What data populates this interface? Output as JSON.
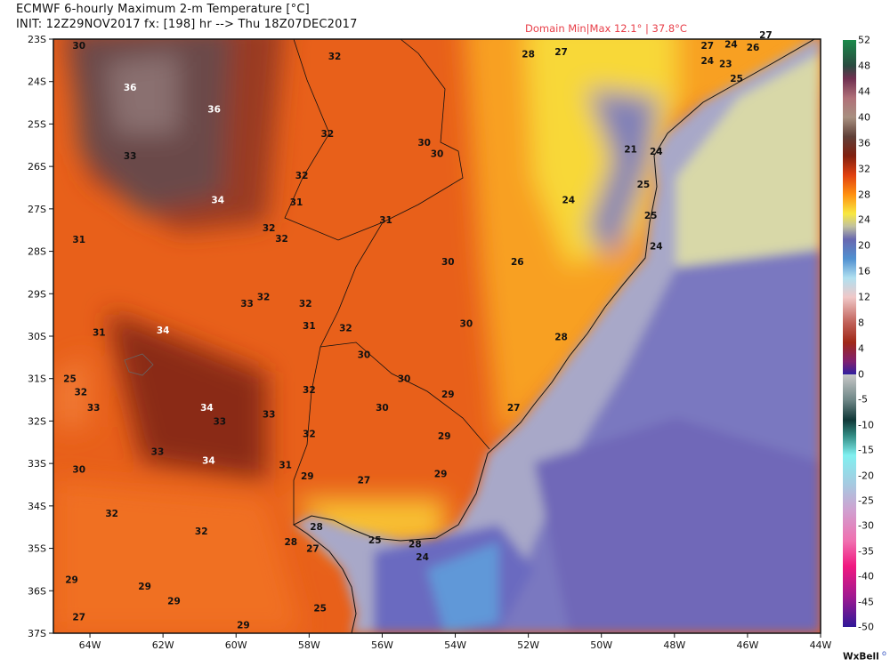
{
  "header": {
    "title": "ECMWF 6-hourly Maximum 2-m Temperature [°C]",
    "init_line": "INIT: 12Z29NOV2017 fx: [198] hr --> Thu 18Z07DEC2017",
    "domain_minmax": "Domain Min|Max 12.1° | 37.8°C"
  },
  "map": {
    "lon_range": [
      -65,
      -44
    ],
    "lat_range": [
      -37,
      -23
    ],
    "lat_ticks": [
      "23S",
      "24S",
      "25S",
      "26S",
      "27S",
      "28S",
      "29S",
      "30S",
      "31S",
      "32S",
      "33S",
      "34S",
      "35S",
      "36S",
      "37S"
    ],
    "lon_ticks": [
      "64W",
      "62W",
      "60W",
      "58W",
      "56W",
      "54W",
      "52W",
      "50W",
      "48W",
      "46W",
      "44W"
    ],
    "temperature_labels": [
      {
        "t": "30",
        "lon": -64.3,
        "lat": -23.1
      },
      {
        "t": "36",
        "lon": -62.9,
        "lat": -24.65
      },
      {
        "t": "36",
        "lon": -60.6,
        "lat": -25.15
      },
      {
        "t": "33",
        "lon": -62.9,
        "lat": -26.2
      },
      {
        "t": "34",
        "lon": -60.5,
        "lat": -27.2
      },
      {
        "t": "31",
        "lon": -64.3,
        "lat": -28.1
      },
      {
        "t": "32",
        "lon": -59.25,
        "lat": -29.4
      },
      {
        "t": "33",
        "lon": -59.7,
        "lat": -29.55
      },
      {
        "t": "32",
        "lon": -58.1,
        "lat": -29.55
      },
      {
        "t": "31",
        "lon": -63.75,
        "lat": -30.2
      },
      {
        "t": "34",
        "lon": -62.0,
        "lat": -30.15
      },
      {
        "t": "31",
        "lon": -58.0,
        "lat": -30.05
      },
      {
        "t": "32",
        "lon": -57.0,
        "lat": -30.1
      },
      {
        "t": "30",
        "lon": -56.5,
        "lat": -30.7
      },
      {
        "t": "30",
        "lon": -55.4,
        "lat": -31.25
      },
      {
        "t": "25",
        "lon": -64.55,
        "lat": -31.25
      },
      {
        "t": "32",
        "lon": -64.25,
        "lat": -31.55
      },
      {
        "t": "33",
        "lon": -63.9,
        "lat": -31.9
      },
      {
        "t": "34",
        "lon": -60.8,
        "lat": -31.9
      },
      {
        "t": "33",
        "lon": -60.45,
        "lat": -31.97
      },
      {
        "t": "33",
        "lon": -59.1,
        "lat": -32.05
      },
      {
        "t": "32",
        "lon": -58.0,
        "lat": -31.5
      },
      {
        "t": "32",
        "lon": -58.0,
        "lat": -32.5
      },
      {
        "t": "30",
        "lon": -56.0,
        "lat": -31.9
      },
      {
        "t": "29",
        "lon": -54.2,
        "lat": -31.6
      },
      {
        "t": "29",
        "lon": -54.3,
        "lat": -32.55
      },
      {
        "t": "27",
        "lon": -52.4,
        "lat": -31.9
      },
      {
        "t": "33",
        "lon": -62.15,
        "lat": -32.9
      },
      {
        "t": "34",
        "lon": -60.75,
        "lat": -33.1
      },
      {
        "t": "31",
        "lon": -58.65,
        "lat": -33.2
      },
      {
        "t": "29",
        "lon": -58.05,
        "lat": -33.45
      },
      {
        "t": "27",
        "lon": -56.5,
        "lat": -33.55
      },
      {
        "t": "29",
        "lon": -54.4,
        "lat": -33.4
      },
      {
        "t": "30",
        "lon": -64.3,
        "lat": -33.3
      },
      {
        "t": "32",
        "lon": -63.4,
        "lat": -34.3
      },
      {
        "t": "32",
        "lon": -60.95,
        "lat": -34.7
      },
      {
        "t": "28",
        "lon": -57.8,
        "lat": -34.6
      },
      {
        "t": "28",
        "lon": -58.5,
        "lat": -34.95
      },
      {
        "t": "27",
        "lon": -57.9,
        "lat": -35.1
      },
      {
        "t": "25",
        "lon": -56.2,
        "lat": -34.9
      },
      {
        "t": "28",
        "lon": -55.1,
        "lat": -35.0
      },
      {
        "t": "24",
        "lon": -54.9,
        "lat": -35.05
      },
      {
        "t": "29",
        "lon": -64.5,
        "lat": -35.8
      },
      {
        "t": "29",
        "lon": -62.5,
        "lat": -35.95
      },
      {
        "t": "29",
        "lon": -61.7,
        "lat": -36.28
      },
      {
        "t": "25",
        "lon": -57.7,
        "lat": -36.45
      },
      {
        "t": "27",
        "lon": -64.3,
        "lat": -36.65
      },
      {
        "t": "29",
        "lon": -59.8,
        "lat": -36.83
      },
      {
        "t": "32",
        "lon": -57.3,
        "lat": -23.95
      },
      {
        "t": "32",
        "lon": -57.5,
        "lat": -25.7
      },
      {
        "t": "30",
        "lon": -54.85,
        "lat": -25.9
      },
      {
        "t": "30",
        "lon": -54.5,
        "lat": -26.15
      },
      {
        "t": "32",
        "lon": -58.2,
        "lat": -26.65
      },
      {
        "t": "31",
        "lon": -58.35,
        "lat": -27.25
      },
      {
        "t": "32",
        "lon": -59.1,
        "lat": -27.83
      },
      {
        "t": "32",
        "lon": -58.75,
        "lat": -27.83
      },
      {
        "t": "31",
        "lon": -55.9,
        "lat": -27.65
      },
      {
        "t": "30",
        "lon": -54.2,
        "lat": -28.6
      },
      {
        "t": "26",
        "lon": -52.3,
        "lat": -28.6
      },
      {
        "t": "30",
        "lon": -53.7,
        "lat": -30.0
      },
      {
        "t": "28",
        "lon": -52.0,
        "lat": -23.9
      },
      {
        "t": "27",
        "lon": -51.1,
        "lat": -23.85
      },
      {
        "t": "27",
        "lon": -47.1,
        "lat": -23.55
      },
      {
        "t": "26",
        "lon": -45.85,
        "lat": -23.75
      },
      {
        "t": "27",
        "lon": -45.5,
        "lat": -23.55
      },
      {
        "t": "24",
        "lon": -47.1,
        "lat": -24.05
      },
      {
        "t": "23",
        "lon": -46.6,
        "lat": -24.12
      },
      {
        "t": "24",
        "lon": -46.45,
        "lat": -23.92
      },
      {
        "t": "25",
        "lon": -46.3,
        "lat": -24.45
      },
      {
        "t": "21",
        "lon": -49.2,
        "lat": -26.05
      },
      {
        "t": "24",
        "lon": -48.5,
        "lat": -26.1
      },
      {
        "t": "25",
        "lon": -48.85,
        "lat": -26.85
      },
      {
        "t": "24",
        "lon": -50.9,
        "lat": -27.2
      },
      {
        "t": "25",
        "lon": -48.65,
        "lat": -27.55
      },
      {
        "t": "24",
        "lon": -48.5,
        "lat": -28.25
      },
      {
        "t": "28",
        "lon": -51.1,
        "lat": -30.3
      }
    ]
  },
  "colorbar": {
    "labels": [
      "52",
      "48",
      "44",
      "40",
      "36",
      "32",
      "28",
      "24",
      "20",
      "16",
      "12",
      "8",
      "4",
      "0",
      "-5",
      "-10",
      "-15",
      "-20",
      "-25",
      "-30",
      "-35",
      "-40",
      "-45",
      "-50"
    ],
    "stops": [
      {
        "v": 52,
        "c": "#1a8a4a"
      },
      {
        "v": 48,
        "c": "#2a4a40"
      },
      {
        "v": 46,
        "c": "#703050"
      },
      {
        "v": 43,
        "c": "#b07078"
      },
      {
        "v": 40,
        "c": "#a89080"
      },
      {
        "v": 37,
        "c": "#604038"
      },
      {
        "v": 34,
        "c": "#802010"
      },
      {
        "v": 31,
        "c": "#e04010"
      },
      {
        "v": 28,
        "c": "#ff9010"
      },
      {
        "v": 25,
        "c": "#f8e840"
      },
      {
        "v": 23,
        "c": "#c0c0a0"
      },
      {
        "v": 21,
        "c": "#6868b0"
      },
      {
        "v": 18,
        "c": "#5090d0"
      },
      {
        "v": 15,
        "c": "#b0e0f0"
      },
      {
        "v": 12,
        "c": "#f0c8c8"
      },
      {
        "v": 8,
        "c": "#c06058"
      },
      {
        "v": 5,
        "c": "#a02818"
      },
      {
        "v": 2,
        "c": "#802070"
      },
      {
        "v": 0,
        "c": "#3020a0"
      }
    ],
    "stops_neg": [
      {
        "v": 0,
        "c": "#c8c8c8"
      },
      {
        "v": -5,
        "c": "#708888"
      },
      {
        "v": -9,
        "c": "#103838"
      },
      {
        "v": -12,
        "c": "#308880"
      },
      {
        "v": -16,
        "c": "#80f0f0"
      },
      {
        "v": -22,
        "c": "#a8c8e0"
      },
      {
        "v": -27,
        "c": "#d0a0d0"
      },
      {
        "v": -33,
        "c": "#f070b0"
      },
      {
        "v": -38,
        "c": "#f01880"
      },
      {
        "v": -44,
        "c": "#a01890"
      },
      {
        "v": -50,
        "c": "#301898"
      }
    ]
  },
  "brand": "WxBell"
}
